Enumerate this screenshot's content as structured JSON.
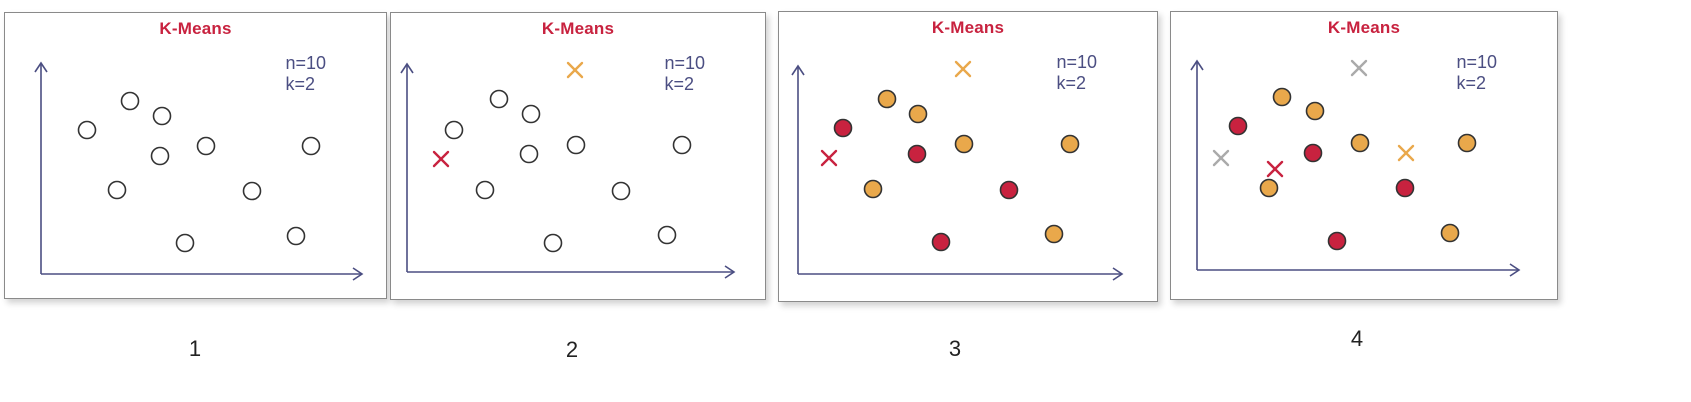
{
  "colors": {
    "title": "#c8223f",
    "params": "#4b4e82",
    "axis": "#4b4e82",
    "cluster_red": "#c8223f",
    "cluster_orange": "#e9a84b",
    "point_empty": "#ffffff",
    "point_stroke": "#333333",
    "old_centroid": "#aaaaaa"
  },
  "panels": [
    {
      "title": "K-Means",
      "params": [
        "n=10",
        "k=2"
      ],
      "caption": "1",
      "points": [
        {
          "label": "p1",
          "cluster": "none"
        },
        {
          "label": "p2",
          "cluster": "none"
        },
        {
          "label": "p3",
          "cluster": "none"
        },
        {
          "label": "p4",
          "cluster": "none"
        },
        {
          "label": "p5",
          "cluster": "none"
        },
        {
          "label": "p6",
          "cluster": "none"
        },
        {
          "label": "p7",
          "cluster": "none"
        },
        {
          "label": "p8",
          "cluster": "none"
        },
        {
          "label": "p9",
          "cluster": "none"
        },
        {
          "label": "p10",
          "cluster": "none"
        }
      ],
      "centroids": []
    },
    {
      "title": "K-Means",
      "params": [
        "n=10",
        "k=2"
      ],
      "caption": "2",
      "points": [
        {
          "label": "p1",
          "cluster": "none"
        },
        {
          "label": "p2",
          "cluster": "none"
        },
        {
          "label": "p3",
          "cluster": "none"
        },
        {
          "label": "p4",
          "cluster": "none"
        },
        {
          "label": "p5",
          "cluster": "none"
        },
        {
          "label": "p6",
          "cluster": "none"
        },
        {
          "label": "p7",
          "cluster": "none"
        },
        {
          "label": "p8",
          "cluster": "none"
        },
        {
          "label": "p9",
          "cluster": "none"
        },
        {
          "label": "p10",
          "cluster": "none"
        }
      ],
      "centroids": [
        {
          "label": "c-orange",
          "color": "orange"
        },
        {
          "label": "c-red",
          "color": "red"
        }
      ]
    },
    {
      "title": "K-Means",
      "params": [
        "n=10",
        "k=2"
      ],
      "caption": "3",
      "points": [
        {
          "label": "p1",
          "cluster": "red"
        },
        {
          "label": "p2",
          "cluster": "orange"
        },
        {
          "label": "p3",
          "cluster": "orange"
        },
        {
          "label": "p4",
          "cluster": "red"
        },
        {
          "label": "p5",
          "cluster": "orange"
        },
        {
          "label": "p6",
          "cluster": "orange"
        },
        {
          "label": "p7",
          "cluster": "red"
        },
        {
          "label": "p8",
          "cluster": "orange"
        },
        {
          "label": "p9",
          "cluster": "red"
        },
        {
          "label": "p10",
          "cluster": "orange"
        }
      ],
      "centroids": [
        {
          "label": "c-orange",
          "color": "orange"
        },
        {
          "label": "c-red",
          "color": "red"
        }
      ]
    },
    {
      "title": "K-Means",
      "params": [
        "n=10",
        "k=2"
      ],
      "caption": "4",
      "points": [
        {
          "label": "p1",
          "cluster": "red"
        },
        {
          "label": "p2",
          "cluster": "orange"
        },
        {
          "label": "p3",
          "cluster": "orange"
        },
        {
          "label": "p4",
          "cluster": "red"
        },
        {
          "label": "p5",
          "cluster": "orange"
        },
        {
          "label": "p6",
          "cluster": "orange"
        },
        {
          "label": "p7",
          "cluster": "red"
        },
        {
          "label": "p8",
          "cluster": "orange"
        },
        {
          "label": "p9",
          "cluster": "red"
        },
        {
          "label": "p10",
          "cluster": "orange"
        }
      ],
      "centroids": [
        {
          "label": "c-old-orange",
          "color": "gray"
        },
        {
          "label": "c-old-red",
          "color": "gray"
        },
        {
          "label": "c-new-red",
          "color": "red"
        },
        {
          "label": "c-new-orange",
          "color": "orange"
        }
      ]
    }
  ]
}
